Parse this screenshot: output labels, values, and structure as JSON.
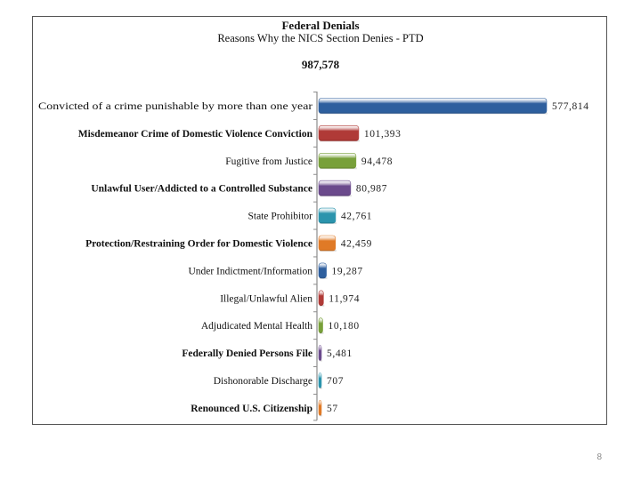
{
  "page_number": "8",
  "chart_data": {
    "type": "bar",
    "orientation": "horizontal",
    "title": "Federal Denials",
    "subtitle": "Reasons Why the NICS Section Denies - PTD",
    "total_label": "987,578",
    "categories": [
      "Convicted of a crime punishable by more than one year",
      "Misdemeanor Crime of Domestic Violence Conviction",
      "Fugitive from Justice",
      "Unlawful User/Addicted to a Controlled Substance",
      "State Prohibitor",
      "Protection/Restraining Order for Domestic Violence",
      "Under Indictment/Information",
      "Illegal/Unlawful Alien",
      "Adjudicated Mental Health",
      "Federally Denied Persons File",
      "Dishonorable Discharge",
      "Renounced U.S. Citizenship"
    ],
    "values": [
      577814,
      101393,
      94478,
      80987,
      42761,
      42459,
      19287,
      11974,
      10180,
      5481,
      707,
      57
    ],
    "value_labels": [
      "577,814",
      "101,393",
      "94,478",
      "80,987",
      "42,761",
      "42,459",
      "19,287",
      "11,974",
      "10,180",
      "5,481",
      "707",
      "57"
    ],
    "colors": [
      "#2e5f9e",
      "#b03a37",
      "#78a03a",
      "#6b4a8c",
      "#2b94ad",
      "#e07a26",
      "#2e5f9e",
      "#b03a37",
      "#78a03a",
      "#6b4a8c",
      "#2b94ad",
      "#e07a26"
    ],
    "xlim": [
      0,
      600000
    ],
    "grid": false,
    "legend": "none"
  }
}
